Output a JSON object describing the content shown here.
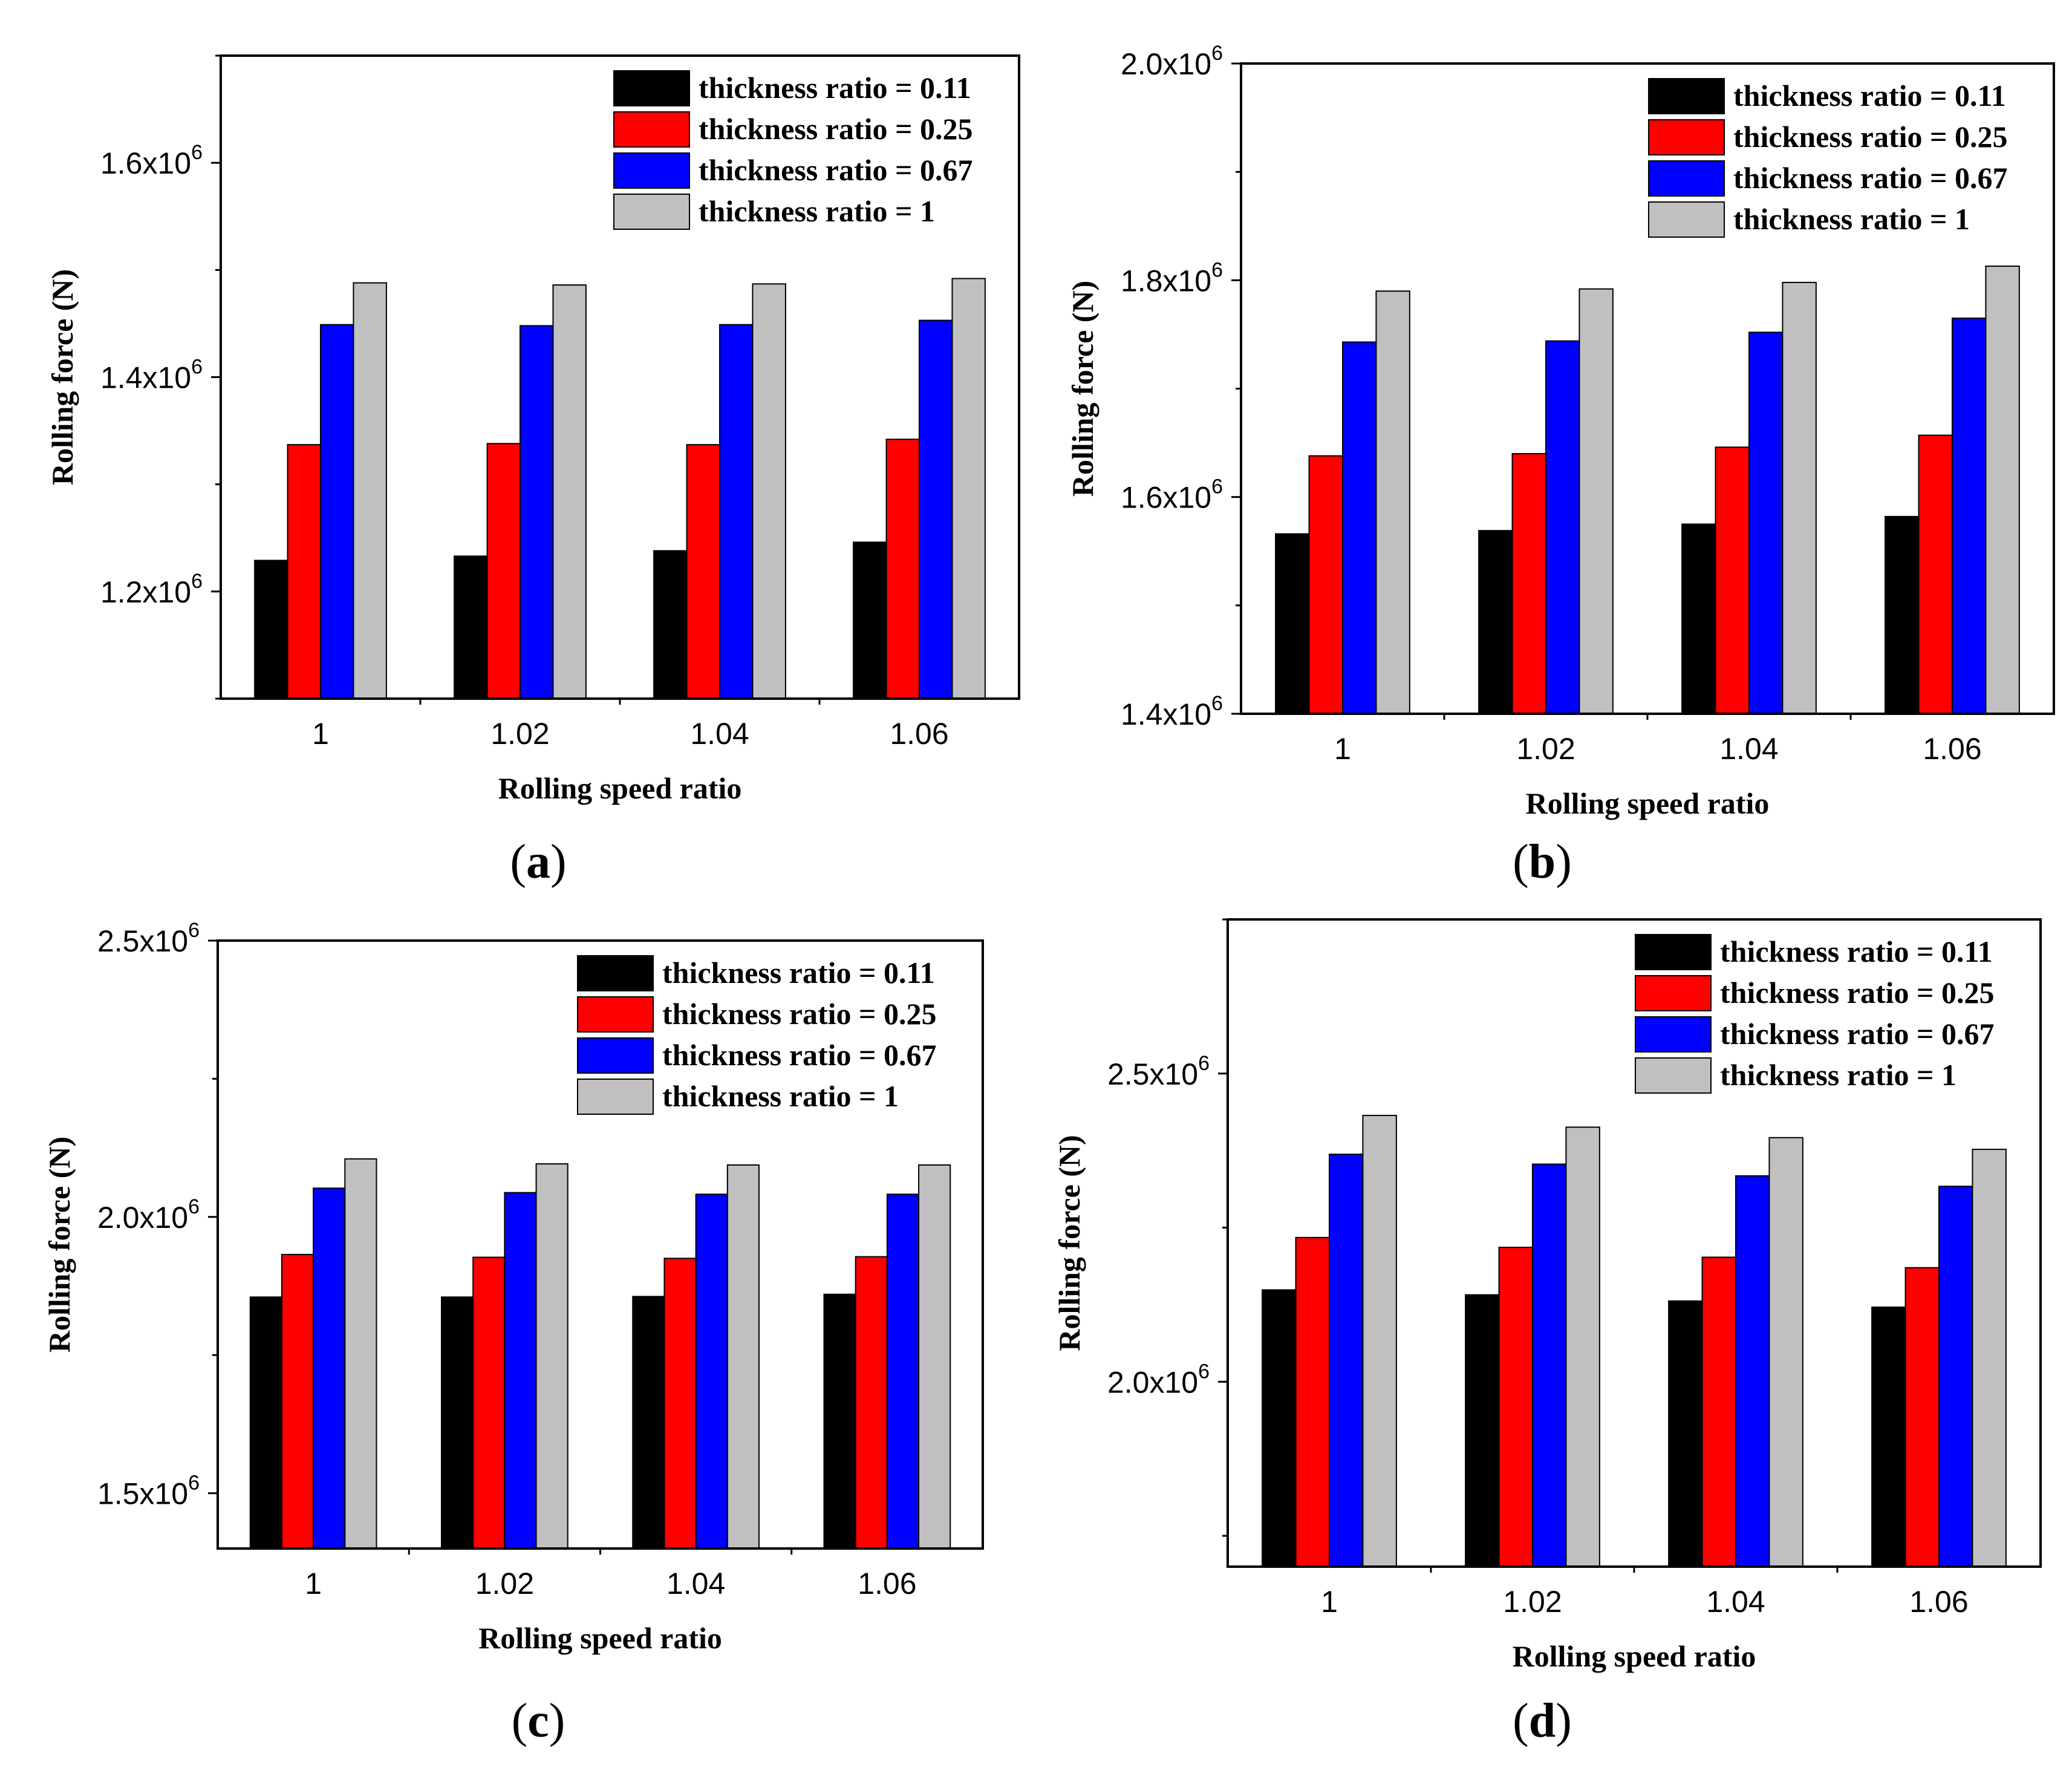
{
  "colors": {
    "0.11": "#000000",
    "0.25": "#ff0000",
    "0.67": "#0000ff",
    "1": "#c0c0c0"
  },
  "chart_data": [
    {
      "id": "a",
      "caption": "a",
      "type": "bar",
      "xlabel": "Rolling speed ratio",
      "ylabel": "Rolling force (N)",
      "categories": [
        "1",
        "1.02",
        "1.04",
        "1.06"
      ],
      "ylim": [
        1100000,
        1700000
      ],
      "yticks": [
        {
          "value": 1200000,
          "mant": "1.2x10",
          "exp": "6"
        },
        {
          "value": 1400000,
          "mant": "1.4x10",
          "exp": "6"
        },
        {
          "value": 1600000,
          "mant": "1.6x10",
          "exp": "6"
        }
      ],
      "legend_position": "top-right",
      "series": [
        {
          "name": "thickness ratio = 0.11",
          "color": "#000000",
          "values": [
            1229000,
            1233000,
            1238000,
            1246000
          ]
        },
        {
          "name": "thickness ratio = 0.25",
          "color": "#ff0000",
          "values": [
            1337000,
            1338000,
            1337000,
            1342000
          ]
        },
        {
          "name": "thickness ratio = 0.67",
          "color": "#0000ff",
          "values": [
            1449000,
            1448000,
            1449000,
            1453000
          ]
        },
        {
          "name": "thickness ratio = 1",
          "color": "#c0c0c0",
          "values": [
            1488000,
            1486000,
            1487000,
            1492000
          ]
        }
      ]
    },
    {
      "id": "b",
      "caption": "b",
      "type": "bar",
      "xlabel": "Rolling speed ratio",
      "ylabel": "Rolling force (N)",
      "categories": [
        "1",
        "1.02",
        "1.04",
        "1.06"
      ],
      "ylim": [
        1400000,
        2000000
      ],
      "yticks": [
        {
          "value": 1400000,
          "mant": "1.4x10",
          "exp": "6"
        },
        {
          "value": 1600000,
          "mant": "1.6x10",
          "exp": "6"
        },
        {
          "value": 1800000,
          "mant": "1.8x10",
          "exp": "6"
        },
        {
          "value": 2000000,
          "mant": "2.0x10",
          "exp": "6"
        }
      ],
      "legend_position": "top-right",
      "series": [
        {
          "name": "thickness ratio = 0.11",
          "color": "#000000",
          "values": [
            1566000,
            1569000,
            1575000,
            1582000
          ]
        },
        {
          "name": "thickness ratio = 0.25",
          "color": "#ff0000",
          "values": [
            1638000,
            1640000,
            1646000,
            1657000
          ]
        },
        {
          "name": "thickness ratio = 0.67",
          "color": "#0000ff",
          "values": [
            1743000,
            1744000,
            1752000,
            1765000
          ]
        },
        {
          "name": "thickness ratio = 1",
          "color": "#c0c0c0",
          "values": [
            1790000,
            1792000,
            1798000,
            1813000
          ]
        }
      ]
    },
    {
      "id": "c",
      "caption": "c",
      "type": "bar",
      "xlabel": "Rolling speed ratio",
      "ylabel": "Rolling force (N)",
      "categories": [
        "1",
        "1.02",
        "1.04",
        "1.06"
      ],
      "ylim": [
        1400000,
        2500000
      ],
      "yticks": [
        {
          "value": 1500000,
          "mant": "1.5x10",
          "exp": "6"
        },
        {
          "value": 2000000,
          "mant": "2.0x10",
          "exp": "6"
        },
        {
          "value": 2500000,
          "mant": "2.5x10",
          "exp": "6"
        }
      ],
      "legend_position": "top-right",
      "series": [
        {
          "name": "thickness ratio = 0.11",
          "color": "#000000",
          "values": [
            1855000,
            1855000,
            1856000,
            1860000
          ]
        },
        {
          "name": "thickness ratio = 0.25",
          "color": "#ff0000",
          "values": [
            1932000,
            1927000,
            1925000,
            1928000
          ]
        },
        {
          "name": "thickness ratio = 0.67",
          "color": "#0000ff",
          "values": [
            2052000,
            2044000,
            2041000,
            2041000
          ]
        },
        {
          "name": "thickness ratio = 1",
          "color": "#c0c0c0",
          "values": [
            2105000,
            2096000,
            2094000,
            2094000
          ]
        }
      ]
    },
    {
      "id": "d",
      "caption": "d",
      "type": "bar",
      "xlabel": "Rolling speed ratio",
      "ylabel": "Rolling force (N)",
      "categories": [
        "1",
        "1.02",
        "1.04",
        "1.06"
      ],
      "ylim": [
        1700000,
        2750000
      ],
      "yticks": [
        {
          "value": 2000000,
          "mant": "2.0x10",
          "exp": "6"
        },
        {
          "value": 2500000,
          "mant": "2.5x10",
          "exp": "6"
        }
      ],
      "legend_position": "top-right",
      "series": [
        {
          "name": "thickness ratio = 0.11",
          "color": "#000000",
          "values": [
            2149000,
            2141000,
            2131000,
            2121000
          ]
        },
        {
          "name": "thickness ratio = 0.25",
          "color": "#ff0000",
          "values": [
            2234000,
            2218000,
            2202000,
            2185000
          ]
        },
        {
          "name": "thickness ratio = 0.67",
          "color": "#0000ff",
          "values": [
            2369000,
            2353000,
            2334000,
            2317000
          ]
        },
        {
          "name": "thickness ratio = 1",
          "color": "#c0c0c0",
          "values": [
            2432000,
            2413000,
            2396000,
            2377000
          ]
        }
      ]
    }
  ]
}
